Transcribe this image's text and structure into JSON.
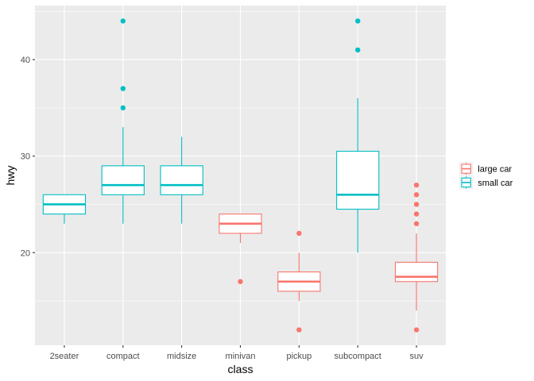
{
  "chart_data": {
    "type": "boxplot",
    "xlabel": "class",
    "ylabel": "hwy",
    "ylim": [
      10.4,
      45.6
    ],
    "yticks": [
      20,
      30,
      40
    ],
    "categories": [
      "2seater",
      "compact",
      "midsize",
      "minivan",
      "pickup",
      "subcompact",
      "suv"
    ],
    "legend": {
      "position": "right",
      "entries": [
        {
          "label": "large car",
          "color": "#F8766D"
        },
        {
          "label": "small car",
          "color": "#00BFC4"
        }
      ]
    },
    "boxes": [
      {
        "category": "2seater",
        "group": "small car",
        "min": 23,
        "q1": 24,
        "median": 25,
        "q3": 26,
        "max": 26,
        "outliers": []
      },
      {
        "category": "compact",
        "group": "small car",
        "min": 23,
        "q1": 26,
        "median": 27,
        "q3": 29,
        "max": 33,
        "outliers": [
          35,
          37,
          44
        ]
      },
      {
        "category": "midsize",
        "group": "small car",
        "min": 23,
        "q1": 26,
        "median": 27,
        "q3": 29,
        "max": 32,
        "outliers": []
      },
      {
        "category": "minivan",
        "group": "large car",
        "min": 21,
        "q1": 22,
        "median": 23,
        "q3": 24,
        "max": 24,
        "outliers": [
          17
        ]
      },
      {
        "category": "pickup",
        "group": "large car",
        "min": 15,
        "q1": 16,
        "median": 17,
        "q3": 18,
        "max": 20,
        "outliers": [
          12,
          22
        ]
      },
      {
        "category": "subcompact",
        "group": "small car",
        "min": 20,
        "q1": 24.5,
        "median": 26,
        "q3": 30.5,
        "max": 36,
        "outliers": [
          41,
          44
        ]
      },
      {
        "category": "suv",
        "group": "large car",
        "min": 14,
        "q1": 17,
        "median": 17.5,
        "q3": 19,
        "max": 22,
        "outliers": [
          12,
          23,
          24,
          25,
          26,
          27
        ]
      }
    ]
  }
}
